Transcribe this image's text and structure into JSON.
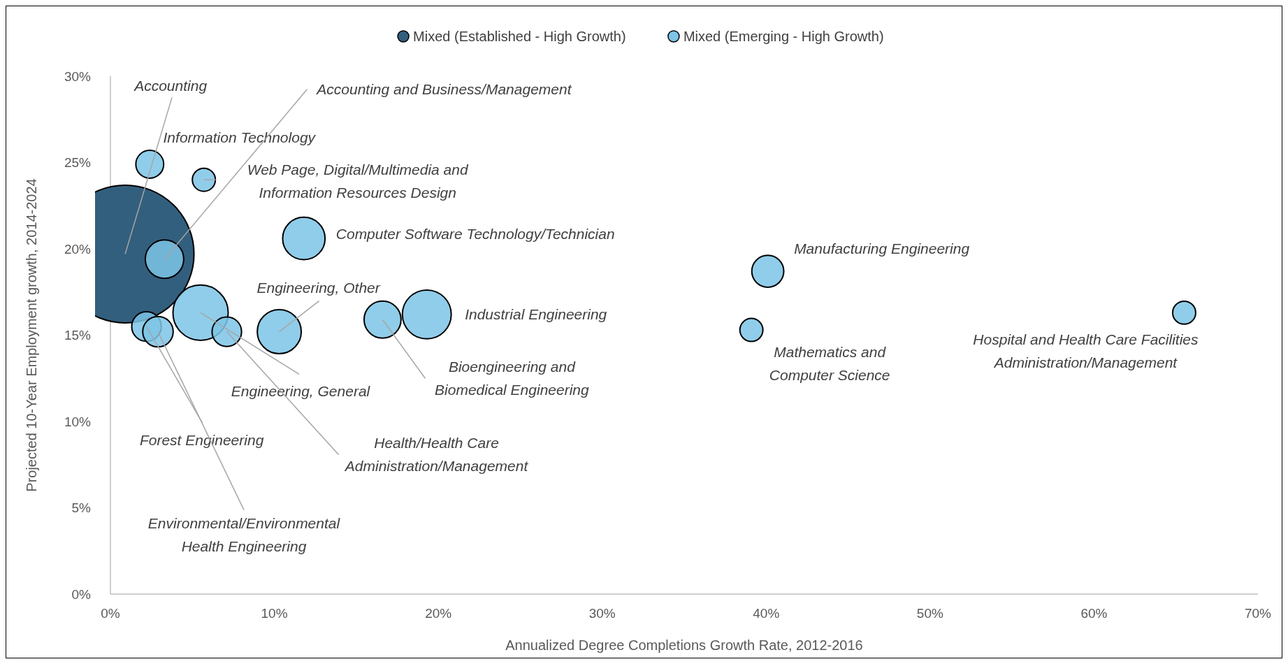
{
  "chart_data": {
    "type": "bubble",
    "xlabel": "Annualized Degree Completions Growth Rate, 2012-2016",
    "ylabel": "Projected 10-Year Employment growth, 2014-2024",
    "xlim": [
      0,
      70
    ],
    "ylim": [
      0,
      30
    ],
    "xticks": [
      {
        "value": 0,
        "label": "0%"
      },
      {
        "value": 10,
        "label": "10%"
      },
      {
        "value": 20,
        "label": "20%"
      },
      {
        "value": 30,
        "label": "30%"
      },
      {
        "value": 40,
        "label": "40%"
      },
      {
        "value": 50,
        "label": "50%"
      },
      {
        "value": 60,
        "label": "60%"
      },
      {
        "value": 70,
        "label": "70%"
      }
    ],
    "yticks": [
      {
        "value": 0,
        "label": "0%"
      },
      {
        "value": 5,
        "label": "5%"
      },
      {
        "value": 10,
        "label": "10%"
      },
      {
        "value": 15,
        "label": "15%"
      },
      {
        "value": 20,
        "label": "20%"
      },
      {
        "value": 25,
        "label": "25%"
      },
      {
        "value": 30,
        "label": "30%"
      }
    ],
    "grid": false,
    "legend": "top",
    "marker": "circle",
    "series": [
      {
        "name": "Mixed (Established - High Growth)",
        "color": "#335f7e",
        "x": [
          0.9
        ],
        "values": [
          19.7
        ],
        "sizes": [
          1
        ]
      },
      {
        "name": "Mixed (Emerging - High Growth)",
        "color": "#7dc4e6",
        "x": [
          2.4,
          5.7,
          3.3,
          11.8,
          40.1,
          65.5,
          39.1,
          19.3,
          16.6,
          10.3,
          5.5,
          7.1,
          2.2,
          2.9
        ],
        "values": [
          24.9,
          24.0,
          19.4,
          20.6,
          18.7,
          16.3,
          15.3,
          16.2,
          15.9,
          15.2,
          16.3,
          15.2,
          15.5,
          15.2
        ],
        "sizes": [
          0.041,
          0.028,
          0.078,
          0.095,
          0.054,
          0.028,
          0.028,
          0.126,
          0.072,
          0.102,
          0.161,
          0.046,
          0.046,
          0.049
        ]
      }
    ],
    "annotations": [
      {
        "text": "Accounting",
        "x": 0.9,
        "y": 19.7
      },
      {
        "text": "Information Technology",
        "x": 2.4,
        "y": 24.9
      },
      {
        "text": "Web Page, Digital/Multimedia and Information Resources Design",
        "x": 5.7,
        "y": 24.0
      },
      {
        "text": "Accounting and Business/Management",
        "x": 3.3,
        "y": 19.4
      },
      {
        "text": "Computer Software Technology/Technician",
        "x": 11.8,
        "y": 20.6
      },
      {
        "text": "Manufacturing Engineering",
        "x": 40.1,
        "y": 18.7
      },
      {
        "text": "Hospital and Health Care Facilities Administration/Management",
        "x": 65.5,
        "y": 16.3
      },
      {
        "text": "Mathematics and Computer Science",
        "x": 39.1,
        "y": 15.3
      },
      {
        "text": "Industrial Engineering",
        "x": 19.3,
        "y": 16.2
      },
      {
        "text": "Bioengineering and Biomedical Engineering",
        "x": 16.6,
        "y": 15.9
      },
      {
        "text": "Engineering, Other",
        "x": 10.3,
        "y": 15.2
      },
      {
        "text": "Engineering, General",
        "x": 5.5,
        "y": 16.3
      },
      {
        "text": "Health/Health Care Administration/Management",
        "x": 7.1,
        "y": 15.2
      },
      {
        "text": "Forest Engineering",
        "x": 2.2,
        "y": 15.5
      },
      {
        "text": "Environmental/Environmental Health Engineering",
        "x": 2.9,
        "y": 15.2
      }
    ]
  }
}
